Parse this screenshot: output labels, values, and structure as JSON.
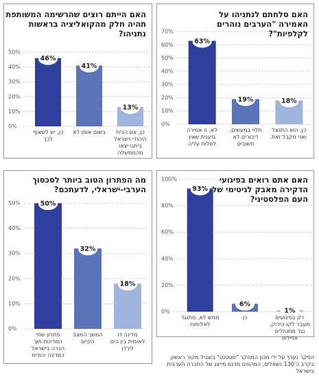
{
  "chart_data": [
    {
      "type": "bar",
      "title": "האם סלחתם לנתניהו על האמירה \"הערבים נוהרים לקלפיות\"?",
      "categories": [
        "לא, זו אמירה גזענית שאין לסלוח עליה",
        "תלוי במעשים, דיבורים לא חשובים",
        "כן, הוא התנצל ואני מקבל זאת"
      ],
      "values": [
        63,
        19,
        18
      ],
      "value_labels": [
        "63%",
        "19%",
        "18%"
      ],
      "colors": [
        "#2f3f9d",
        "#5b73b8",
        "#9fb5df"
      ],
      "ylim": [
        0,
        70
      ],
      "yticks": [
        {
          "value": 0,
          "label": "0%"
        },
        {
          "value": 10,
          "label": "10%"
        },
        {
          "value": 20,
          "label": "20%"
        },
        {
          "value": 30,
          "label": "30%"
        },
        {
          "value": 40,
          "label": "40%"
        },
        {
          "value": 50,
          "label": "50%"
        },
        {
          "value": 60,
          "label": "60%"
        },
        {
          "value": 70,
          "label": "70%"
        }
      ],
      "grid": true
    },
    {
      "type": "bar",
      "title": "האם הייתם רוצים שהרשימה המשותפת תהיה חלק מהקואליציה בראשות נתניהו?",
      "categories": [
        "כן, יש לשאוף לכך",
        "בשום אופן לא",
        "כן, אם הבית היהודי וישראל ביתנו יצאו מהממשלה"
      ],
      "values": [
        46,
        41,
        13
      ],
      "value_labels": [
        "46%",
        "41%",
        "13%"
      ],
      "colors": [
        "#2f3f9d",
        "#5b73b8",
        "#9fb5df"
      ],
      "ylim": [
        0,
        50
      ],
      "yticks": [
        {
          "value": 0,
          "label": "0%"
        },
        {
          "value": 10,
          "label": "10%"
        },
        {
          "value": 20,
          "label": "20%"
        },
        {
          "value": 30,
          "label": "30%"
        },
        {
          "value": 40,
          "label": "40%"
        },
        {
          "value": 50,
          "label": "50%"
        }
      ],
      "grid": true
    },
    {
      "type": "bar",
      "title": "האם אתם רואים בפיגועי הדקירה מאבק לגיטימי של העם הפלסטיני?",
      "categories": [
        "ממש לא, מתנגד לאלימות",
        "כן",
        "רק בפיגועים מעבר לקו הירוק, נגד מתנחלים וחיילים"
      ],
      "values": [
        93,
        6,
        1
      ],
      "value_labels": [
        "93%",
        "6%",
        "1%"
      ],
      "colors": [
        "#2f3f9d",
        "#5b73b8",
        "#9fb5df"
      ],
      "ylim": [
        0,
        100
      ],
      "yticks": [
        {
          "value": 0,
          "label": "0%"
        },
        {
          "value": 20,
          "label": "20%"
        },
        {
          "value": 40,
          "label": "40%"
        },
        {
          "value": 60,
          "label": "60%"
        },
        {
          "value": 80,
          "label": "80%"
        },
        {
          "value": 100,
          "label": "100%"
        }
      ],
      "grid": true
    },
    {
      "type": "bar",
      "title": "מה הפתרון הטוב ביותר לסכסוך הערבי-ישראלי, לדעתכם?",
      "categories": [
        "פתרון שתי המדינות תוך הכרה בישראל כמדינה יהודית",
        "המשך המצב הקיים",
        "מדינה דו לאומית בין הים לירדן"
      ],
      "values": [
        50,
        32,
        18
      ],
      "value_labels": [
        "50%",
        "32%",
        "18%"
      ],
      "colors": [
        "#2f3f9d",
        "#5b73b8",
        "#9fb5df"
      ],
      "ylim": [
        0,
        50
      ],
      "yticks": [
        {
          "value": 0,
          "label": "0%"
        },
        {
          "value": 10,
          "label": "10%"
        },
        {
          "value": 20,
          "label": "20%"
        },
        {
          "value": 30,
          "label": "30%"
        },
        {
          "value": 40,
          "label": "40%"
        },
        {
          "value": 50,
          "label": "50%"
        }
      ],
      "grid": true
    }
  ],
  "footnote": "הסקר נערך על ידי מכון המחקר \"סטטנט\" בשביל מקור ראשון, בקרב כ־130 נשאלים, המהווים מדגם מייצג של החברה הערבית בישראל"
}
